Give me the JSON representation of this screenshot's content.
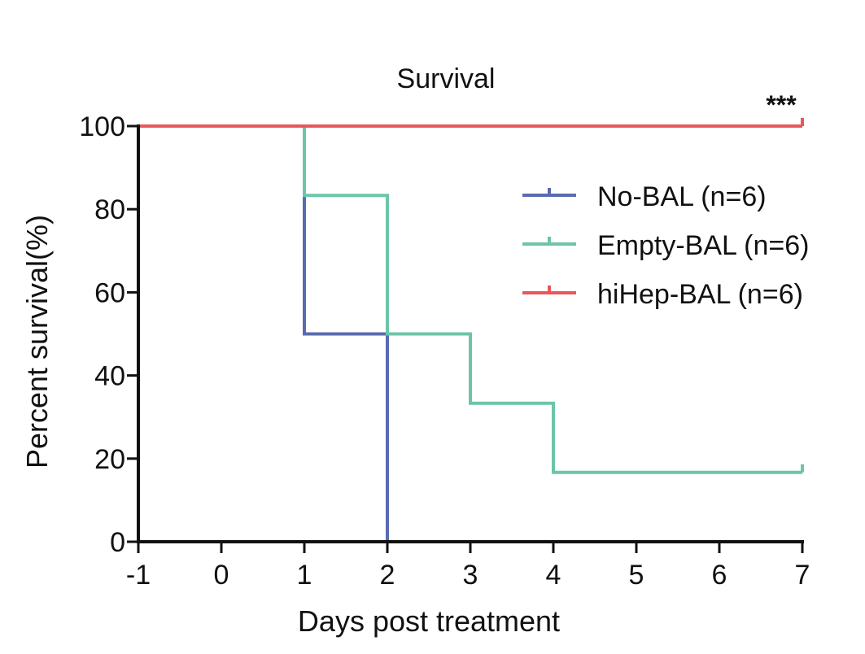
{
  "chart_data": {
    "type": "line",
    "step": true,
    "title": "Survival",
    "xlabel": "Days post treatment",
    "ylabel": "Percent survival(%)",
    "xlim": [
      -1,
      7
    ],
    "ylim": [
      0,
      100
    ],
    "xticks": [
      -1,
      0,
      1,
      2,
      3,
      4,
      5,
      6,
      7
    ],
    "yticks": [
      0,
      20,
      40,
      60,
      80,
      100
    ],
    "grid": false,
    "legend_position": "top-right",
    "annotation": "***",
    "series": [
      {
        "name": "No-BAL (n=6)",
        "color": "#5b6bb0",
        "x": [
          1,
          2
        ],
        "y": [
          50,
          0
        ]
      },
      {
        "name": "Empty-BAL (n=6)",
        "color": "#6cc5a8",
        "x": [
          1,
          2,
          3,
          4,
          7
        ],
        "y": [
          83.3,
          50,
          33.3,
          16.7,
          16.7
        ]
      },
      {
        "name": "hiHep-BAL (n=6)",
        "color": "#e8585a",
        "x": [
          -1,
          7
        ],
        "y": [
          100,
          100
        ]
      }
    ]
  }
}
